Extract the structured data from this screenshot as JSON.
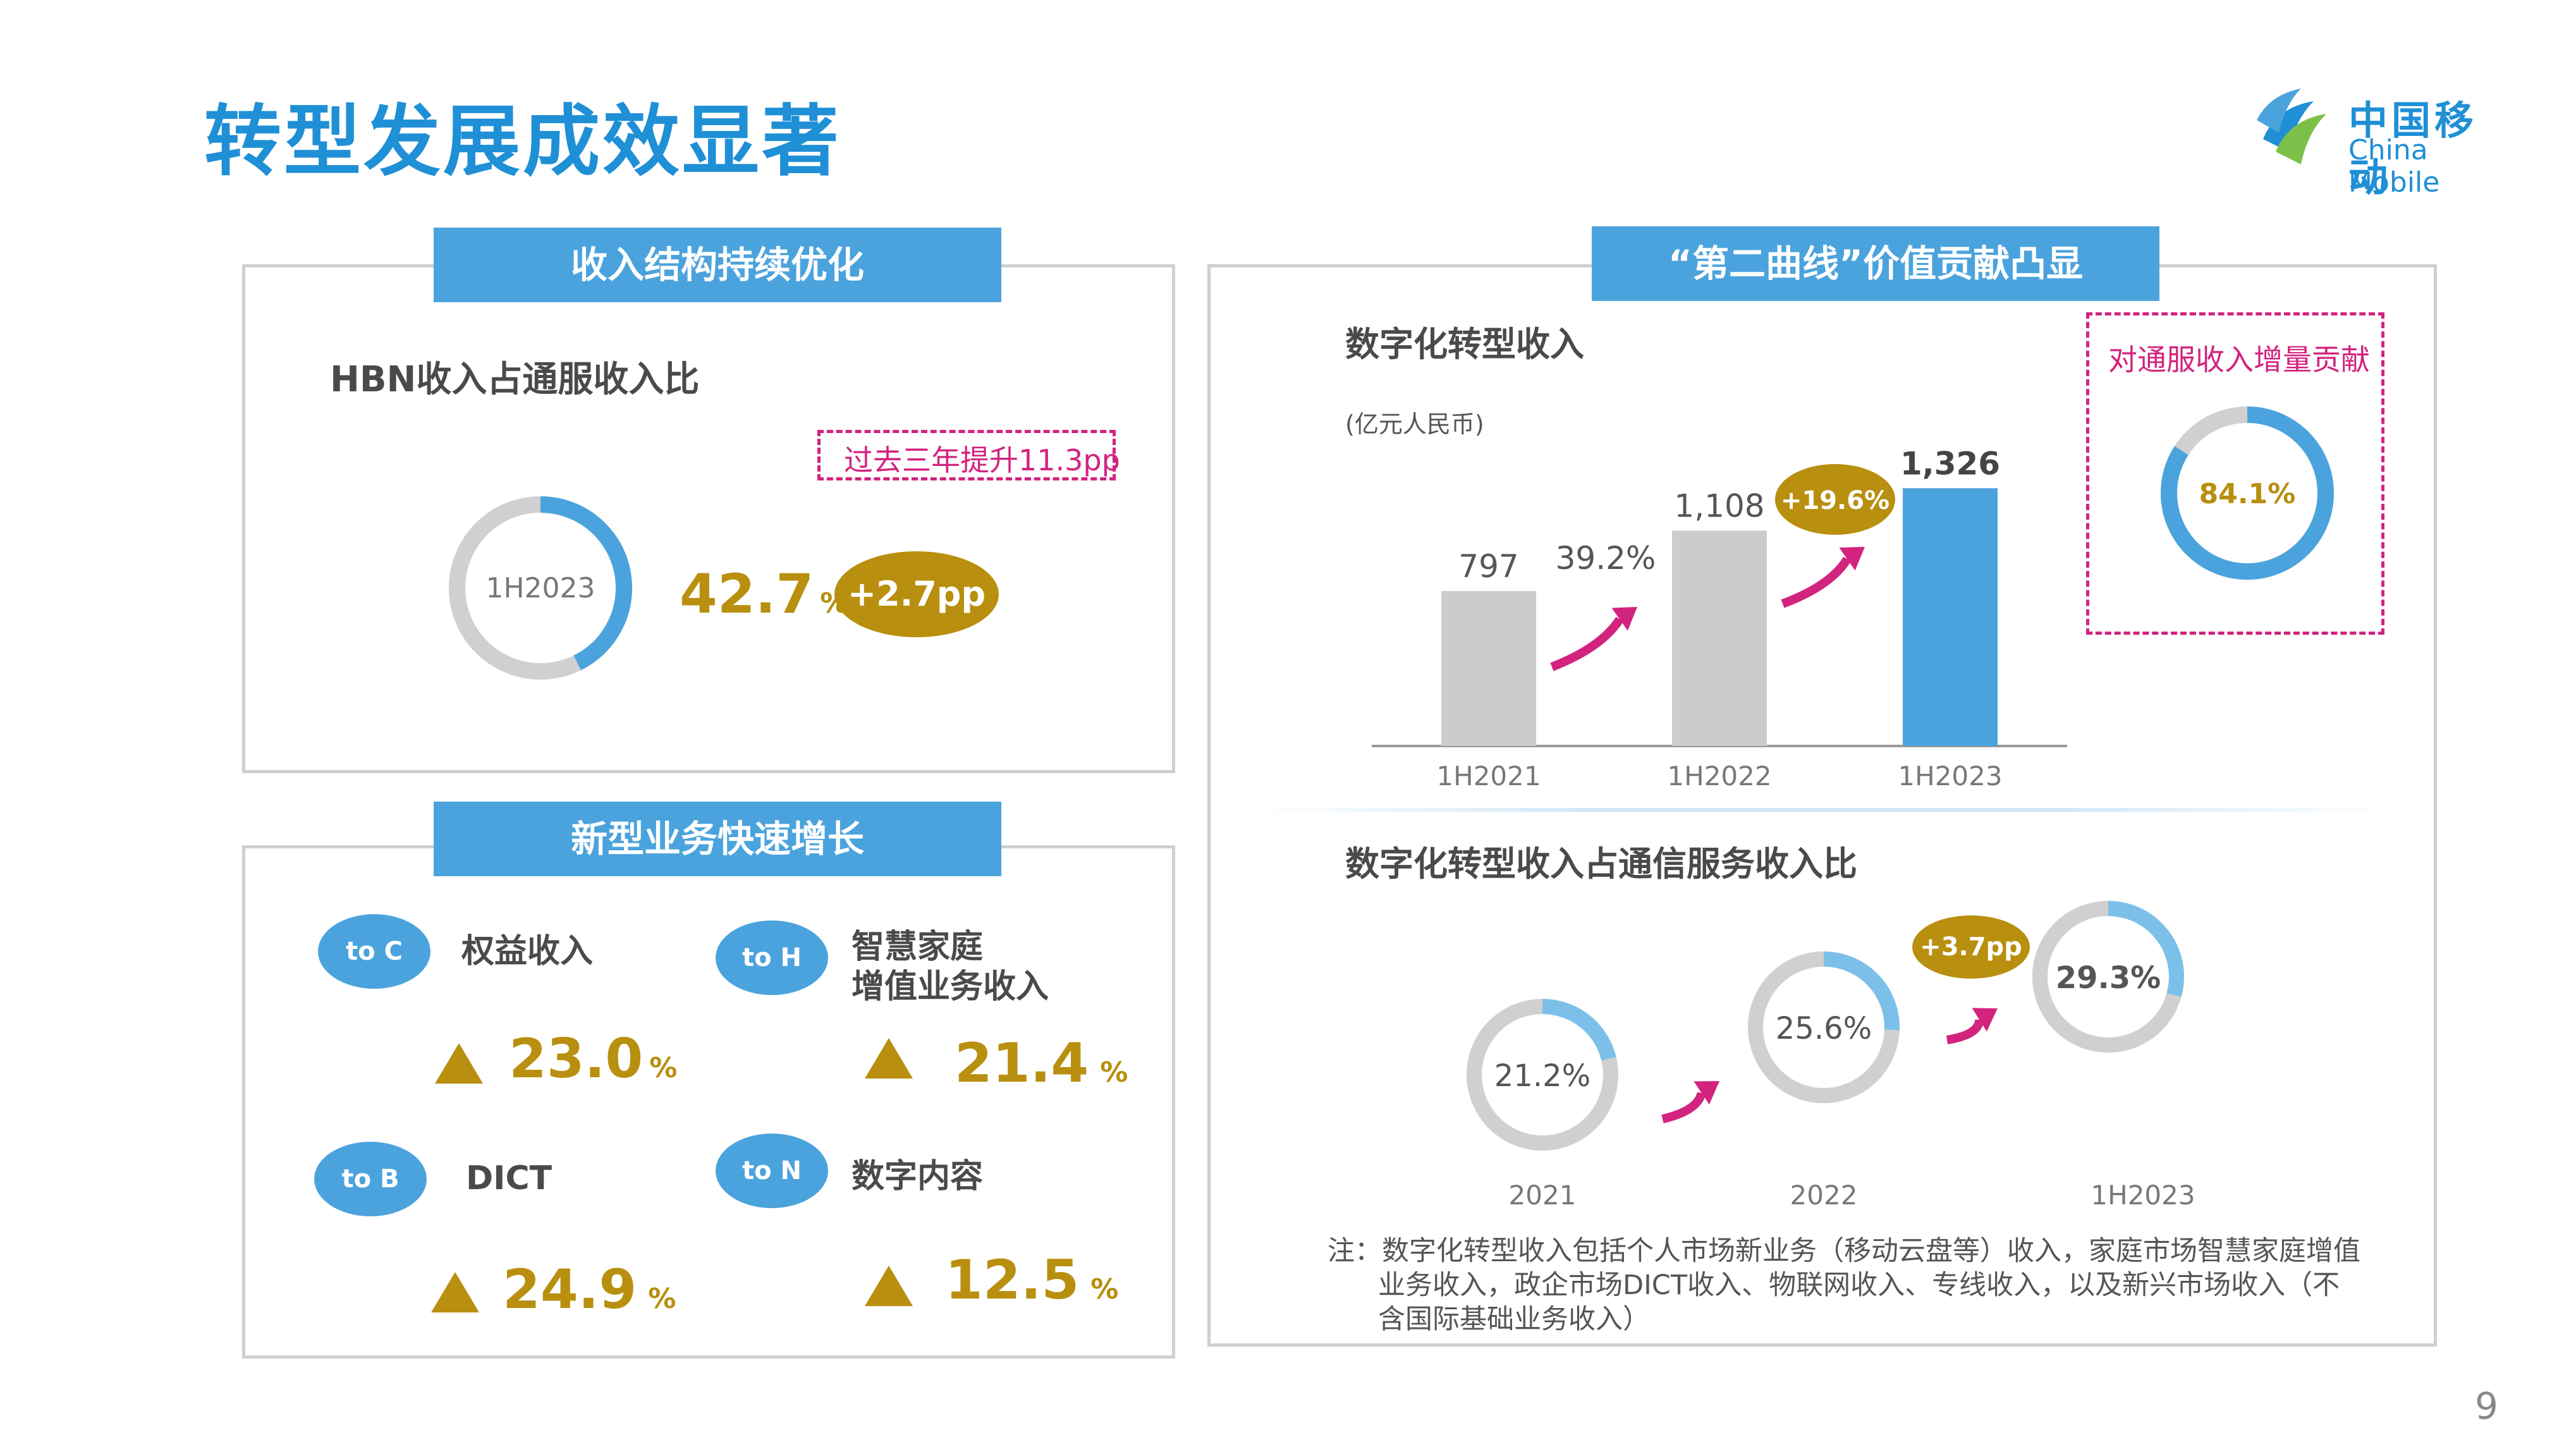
{
  "page": {
    "title": "转型发展成效显著",
    "logo_cn": "中国移动",
    "logo_en": "China Mobile",
    "page_number": "9"
  },
  "left_top": {
    "tab": "收入结构持续优化",
    "subtitle": "HBN收入占通服收入比",
    "note": "过去三年提升11.3pp",
    "donut_label": "1H2023",
    "value": "42.7",
    "unit": "%",
    "change": "+2.7pp",
    "share": 0.427
  },
  "left_bottom": {
    "tab": "新型业务快速增长",
    "items": [
      {
        "tag": "to C",
        "label": "权益收入",
        "value": "23.0",
        "unit": "%"
      },
      {
        "tag": "to H",
        "label_line1": "智慧家庭",
        "label_line2": "增值业务收入",
        "value": "21.4",
        "unit": "%"
      },
      {
        "tag": "to B",
        "label": "DICT",
        "value": "24.9",
        "unit": "%"
      },
      {
        "tag": "to N",
        "label": "数字内容",
        "value": "12.5",
        "unit": "%"
      }
    ]
  },
  "right": {
    "tab": "“第二曲线”价值贡献凸显",
    "note": "注：数字化转型收入包括个人市场新业务（移动云盘等）收入，家庭市场智慧家庭增值业务收入，政企市场DICT收入、物联网收入、专线收入，以及新兴市场收入（不含国际基础业务收入）"
  },
  "colors": {
    "brand_blue": "#1f8fd6",
    "bar_blue": "#4ba3dd",
    "bar_gray": "#cccccc",
    "gold": "#b88f0e",
    "magenta": "#d2237f",
    "light_blue": "#7cc0ea"
  },
  "chart_data": [
    {
      "type": "bar",
      "title": "数字化转型收入",
      "ylabel": "(亿元人民币)",
      "categories": [
        "1H2021",
        "1H2022",
        "1H2023"
      ],
      "values": [
        797,
        1108,
        1326
      ],
      "value_labels": [
        "797",
        "1,108",
        "1,326"
      ],
      "growth_labels": [
        "39.2%",
        "+19.6%"
      ],
      "ylim": [
        0,
        1400
      ]
    },
    {
      "type": "pie",
      "title": "对通服收入增量贡献",
      "values": [
        84.1
      ],
      "value_label": "84.1%"
    },
    {
      "type": "pie",
      "title": "数字化转型收入占通信服务收入比",
      "categories": [
        "2021",
        "2022",
        "1H2023"
      ],
      "values": [
        21.2,
        25.6,
        29.3
      ],
      "value_labels": [
        "21.2%",
        "25.6%",
        "29.3%"
      ],
      "change_label": "+3.7pp"
    }
  ]
}
